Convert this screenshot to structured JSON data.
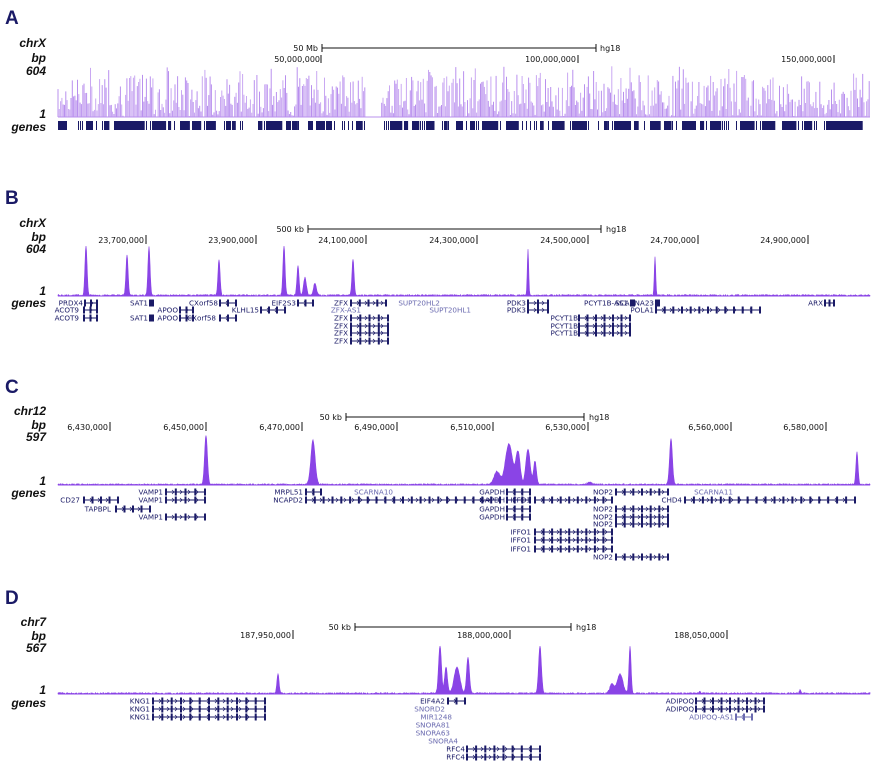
{
  "colors": {
    "signal_dense": "#8a44e6",
    "signal_light": "#b990ee",
    "gene": "#1a1a66",
    "noncoding_gene": "#6b6bb0",
    "panel_letter": "#1a1a66"
  },
  "panels": [
    {
      "letter": "A",
      "chrom": "chrX",
      "bp": "bp",
      "max": "604",
      "min": "1",
      "genes_label": "genes",
      "scale": {
        "label": "50 Mb",
        "assembly": "hg18"
      },
      "ticks": [
        "50,000,000",
        "100,000,000",
        "150,000,000"
      ],
      "gene_labels": []
    },
    {
      "letter": "B",
      "chrom": "chrX",
      "bp": "bp",
      "max": "604",
      "min": "1",
      "genes_label": "genes",
      "scale": {
        "label": "500 kb",
        "assembly": "hg18"
      },
      "ticks": [
        "23,700,000",
        "23,900,000",
        "24,100,000",
        "24,300,000",
        "24,500,000",
        "24,700,000",
        "24,900,000"
      ],
      "gene_labels": [
        "PRDX4",
        "ACOT9",
        "ACOT9",
        "SAT1",
        "SAT1",
        "APOO",
        "APOO",
        "CXorf58",
        "CXorf58",
        "KLHL15",
        "EIF2S3",
        "ZFX",
        "ZFX-AS1",
        "ZFX",
        "ZFX",
        "ZFX",
        "ZFX",
        "SUPT20HL2",
        "SUPT20HL1",
        "PDK3",
        "PDK3",
        "PCYT1B-AS1",
        "PCYT1B",
        "PCYT1B",
        "PCYT1B",
        "SCARNA23",
        "POLA1",
        "ARX"
      ]
    },
    {
      "letter": "C",
      "chrom": "chr12",
      "bp": "bp",
      "max": "597",
      "min": "1",
      "genes_label": "genes",
      "scale": {
        "label": "50 kb",
        "assembly": "hg18"
      },
      "ticks": [
        "6,430,000",
        "6,450,000",
        "6,470,000",
        "6,490,000",
        "6,510,000",
        "6,530,000",
        "6,560,000",
        "6,580,000"
      ],
      "gene_labels": [
        "CD27",
        "TAPBPL",
        "VAMP1",
        "VAMP1",
        "VAMP1",
        "MRPL51",
        "NCAPD2",
        "SCARNA10",
        "GAPDH",
        "GAPDH",
        "GAPDH",
        "GAPDH",
        "IFFO1",
        "IFFO1",
        "IFFO1",
        "IFFO1",
        "NOP2",
        "NOP2",
        "NOP2",
        "NOP2",
        "NOP2",
        "CHD4",
        "SCARNA11"
      ]
    },
    {
      "letter": "D",
      "chrom": "chr7",
      "bp": "bp",
      "max": "567",
      "min": "1",
      "genes_label": "genes",
      "scale": {
        "label": "50 kb",
        "assembly": "hg18"
      },
      "ticks": [
        "187,950,000",
        "188,000,000",
        "188,050,000"
      ],
      "gene_labels": [
        "KNG1",
        "KNG1",
        "KNG1",
        "EIF4A2",
        "SNORD2",
        "MIR1248",
        "SNORA81",
        "SNORA63",
        "SNORA4",
        "RFC4",
        "RFC4",
        "ADIPOQ",
        "ADIPOQ",
        "ADIPOQ-AS1"
      ]
    }
  ]
}
